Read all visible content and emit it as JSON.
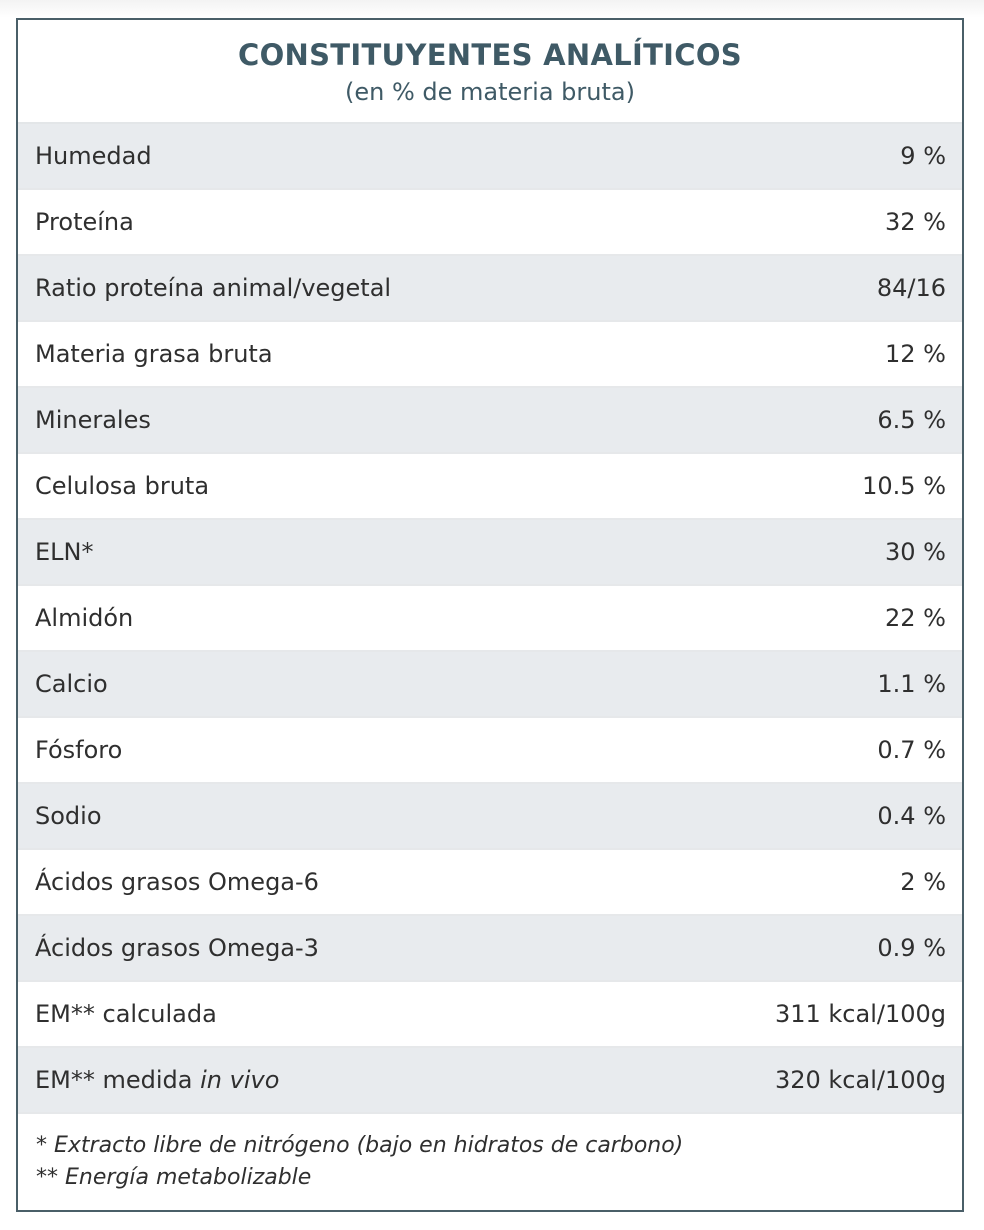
{
  "header": {
    "title": "CONSTITUYENTES ANALÍTICOS",
    "subtitle": "(en % de materia bruta)"
  },
  "rows": [
    {
      "label": "Humedad",
      "value": "9 %"
    },
    {
      "label": "Proteína",
      "value": "32 %"
    },
    {
      "label": "Ratio proteína animal/vegetal",
      "value": "84/16"
    },
    {
      "label": "Materia grasa bruta",
      "value": "12 %"
    },
    {
      "label": "Minerales",
      "value": "6.5 %"
    },
    {
      "label": "Celulosa bruta",
      "value": "10.5 %"
    },
    {
      "label": "ELN*",
      "value": "30 %"
    },
    {
      "label": "Almidón",
      "value": "22 %"
    },
    {
      "label": "Calcio",
      "value": "1.1 %"
    },
    {
      "label": "Fósforo",
      "value": "0.7 %"
    },
    {
      "label": "Sodio",
      "value": "0.4 %"
    },
    {
      "label": "Ácidos grasos Omega-6",
      "value": "2 %"
    },
    {
      "label": "Ácidos grasos Omega-3",
      "value": "0.9 %"
    },
    {
      "label": "EM** calculada",
      "value": "311 kcal/100g"
    },
    {
      "label": "EM** medida",
      "label_italic": "in vivo",
      "value": "320 kcal/100g"
    }
  ],
  "footnotes": [
    "* Extracto libre de nitrógeno (bajo en hidratos de carbono)",
    "** Energía metabolizable"
  ]
}
